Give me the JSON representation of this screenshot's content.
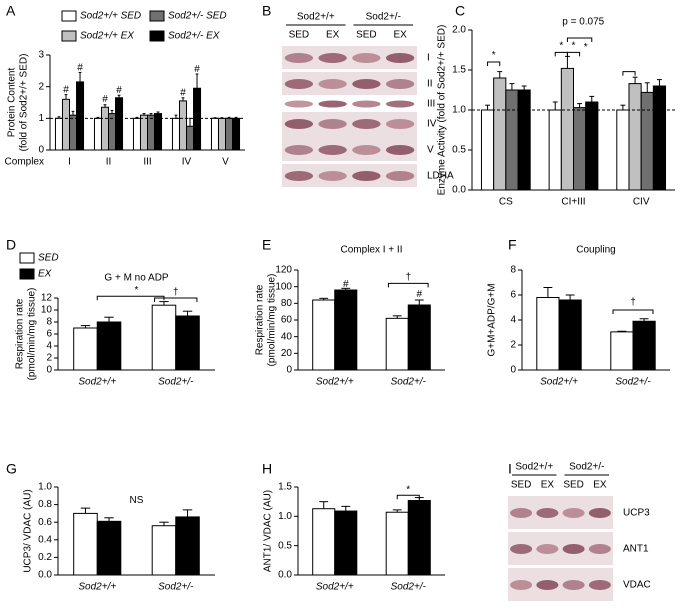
{
  "chart_data": [
    {
      "type": "bar",
      "panel": "A",
      "ylabel": [
        "Protein Content",
        "(fold of Sod2+/+ SED)"
      ],
      "xlabel": "Complex",
      "categories": [
        "I",
        "II",
        "III",
        "IV",
        "V"
      ],
      "series": [
        {
          "name": "Sod2+/+ SED",
          "color": "#ffffff",
          "values": [
            1.0,
            1.0,
            1.0,
            1.0,
            1.0
          ],
          "errors": [
            0.05,
            0.03,
            0.03,
            0.1,
            0.02
          ]
        },
        {
          "name": "Sod2+/+ EX",
          "color": "#c0c0c0",
          "values": [
            1.6,
            1.35,
            1.1,
            1.55,
            1.0
          ],
          "errors": [
            0.15,
            0.08,
            0.05,
            0.1,
            0.02
          ]
        },
        {
          "name": "Sod2+/- SED",
          "color": "#707070",
          "values": [
            1.1,
            1.15,
            1.1,
            0.75,
            1.0
          ],
          "errors": [
            0.12,
            0.1,
            0.05,
            0.25,
            0.03
          ]
        },
        {
          "name": "Sod2+/- EX",
          "color": "#000000",
          "values": [
            2.15,
            1.65,
            1.15,
            1.95,
            1.0
          ],
          "errors": [
            0.3,
            0.08,
            0.05,
            0.45,
            0.03
          ]
        }
      ],
      "ylim": [
        0,
        3
      ],
      "yticks": [
        0,
        1,
        2,
        3
      ],
      "reference_line": 1,
      "legend": true,
      "annotations": [
        "#",
        "#",
        "#",
        "#",
        "#",
        "#"
      ]
    },
    {
      "type": "bar",
      "panel": "C",
      "ylabel": [
        "Enzyme Activity (fold of Sod2+/+ SED)"
      ],
      "categories": [
        "CS",
        "CI+III",
        "CIV"
      ],
      "series": [
        {
          "color": "#ffffff",
          "values": [
            1.0,
            1.0,
            1.0
          ],
          "errors": [
            0.06,
            0.1,
            0.06
          ]
        },
        {
          "color": "#c0c0c0",
          "values": [
            1.4,
            1.52,
            1.33
          ],
          "errors": [
            0.08,
            0.15,
            0.08
          ]
        },
        {
          "color": "#707070",
          "values": [
            1.25,
            1.03,
            1.22
          ],
          "errors": [
            0.08,
            0.05,
            0.12
          ]
        },
        {
          "color": "#000000",
          "values": [
            1.25,
            1.1,
            1.3
          ],
          "errors": [
            0.05,
            0.07,
            0.08
          ]
        }
      ],
      "ylim": [
        0,
        2
      ],
      "yticks": [
        {
          "value": 0,
          "label": "0.0"
        },
        0.5,
        {
          "value": 1,
          "label": "1.0"
        },
        1.5,
        {
          "value": 2,
          "label": "2.0"
        }
      ],
      "reference_line": 1,
      "legend": false,
      "annotations": [
        "*",
        "*",
        "*",
        "*",
        "p = 0.075"
      ]
    },
    {
      "type": "bar",
      "panel": "D",
      "title": "G + M no ADP",
      "ylabel": [
        "Respiration rate",
        "(pmol/min/mg tissue)"
      ],
      "categories": [
        "Sod2+/+",
        "Sod2+/-"
      ],
      "series": [
        {
          "name": "SED",
          "color": "#ffffff",
          "values": [
            7.0,
            10.8
          ],
          "errors": [
            0.4,
            0.6
          ]
        },
        {
          "name": "EX",
          "color": "#000000",
          "values": [
            8.0,
            9.0
          ],
          "errors": [
            0.8,
            0.8
          ]
        }
      ],
      "ylim": [
        0,
        12
      ],
      "yticks": [
        0,
        2,
        4,
        6,
        8,
        10,
        12
      ],
      "legend": true,
      "annotations": [
        "*",
        "†"
      ]
    },
    {
      "type": "bar",
      "panel": "E",
      "title": "Complex I + II",
      "ylabel": [
        "Respiration rate",
        "(pmol/min/mg tissue)"
      ],
      "categories": [
        "Sod2+/+",
        "Sod2+/-"
      ],
      "series": [
        {
          "color": "#ffffff",
          "values": [
            84,
            62
          ],
          "errors": [
            2,
            3
          ]
        },
        {
          "color": "#000000",
          "values": [
            96,
            78
          ],
          "errors": [
            2,
            6
          ]
        }
      ],
      "ylim": [
        0,
        120
      ],
      "yticks": [
        0,
        20,
        40,
        60,
        80,
        100,
        120
      ],
      "legend": false,
      "annotations": [
        "#",
        "†",
        "#"
      ]
    },
    {
      "type": "bar",
      "panel": "F",
      "title": "Coupling",
      "ylabel": [
        "G+M+ADP/G+M"
      ],
      "categories": [
        "Sod2+/+",
        "Sod2+/-"
      ],
      "series": [
        {
          "color": "#ffffff",
          "values": [
            5.8,
            3.05
          ],
          "errors": [
            0.8,
            0.05
          ]
        },
        {
          "color": "#000000",
          "values": [
            5.6,
            3.9
          ],
          "errors": [
            0.4,
            0.2
          ]
        }
      ],
      "ylim": [
        0,
        8
      ],
      "yticks": [
        0,
        2,
        4,
        6,
        8
      ],
      "legend": false,
      "annotations": [
        "†"
      ]
    },
    {
      "type": "bar",
      "panel": "G",
      "ylabel": [
        "UCP3/ VDAC (AU)"
      ],
      "categories": [
        "Sod2+/+",
        "Sod2+/-"
      ],
      "series": [
        {
          "color": "#ffffff",
          "values": [
            0.7,
            0.56
          ],
          "errors": [
            0.06,
            0.04
          ]
        },
        {
          "color": "#000000",
          "values": [
            0.61,
            0.66
          ],
          "errors": [
            0.04,
            0.08
          ]
        }
      ],
      "ylim": [
        0,
        1
      ],
      "yticks": [
        {
          "value": 0,
          "label": "0.0"
        },
        0.2,
        0.4,
        0.6,
        0.8,
        {
          "value": 1,
          "label": "1.0"
        }
      ],
      "legend": false,
      "annotations": [
        "NS"
      ]
    },
    {
      "type": "bar",
      "panel": "H",
      "ylabel": [
        "ANT1/ VDAC (AU)"
      ],
      "categories": [
        "Sod2+/+",
        "Sod2+/-"
      ],
      "series": [
        {
          "color": "#ffffff",
          "values": [
            1.13,
            1.07
          ],
          "errors": [
            0.12,
            0.04
          ]
        },
        {
          "color": "#000000",
          "values": [
            1.09,
            1.27
          ],
          "errors": [
            0.08,
            0.05
          ]
        }
      ],
      "ylim": [
        0,
        1.5
      ],
      "yticks": [
        {
          "value": 0,
          "label": "0.0"
        },
        0.5,
        {
          "value": 1,
          "label": "1.0"
        },
        1.5
      ],
      "legend": false,
      "annotations": [
        "*"
      ]
    }
  ],
  "blots": [
    {
      "panel": "B",
      "groups": [
        "Sod2+/+",
        "Sod2+/-"
      ],
      "lanes": [
        "SED",
        "EX",
        "SED",
        "EX"
      ],
      "bands": [
        "I",
        "II",
        "III",
        "IV",
        "V",
        "LDHA"
      ]
    },
    {
      "panel": "I",
      "groups": [
        "Sod2+/+",
        "Sod2+/-"
      ],
      "lanes": [
        "SED",
        "EX",
        "SED",
        "EX"
      ],
      "bands": [
        "UCP3",
        "ANT1",
        "VDAC"
      ]
    }
  ]
}
